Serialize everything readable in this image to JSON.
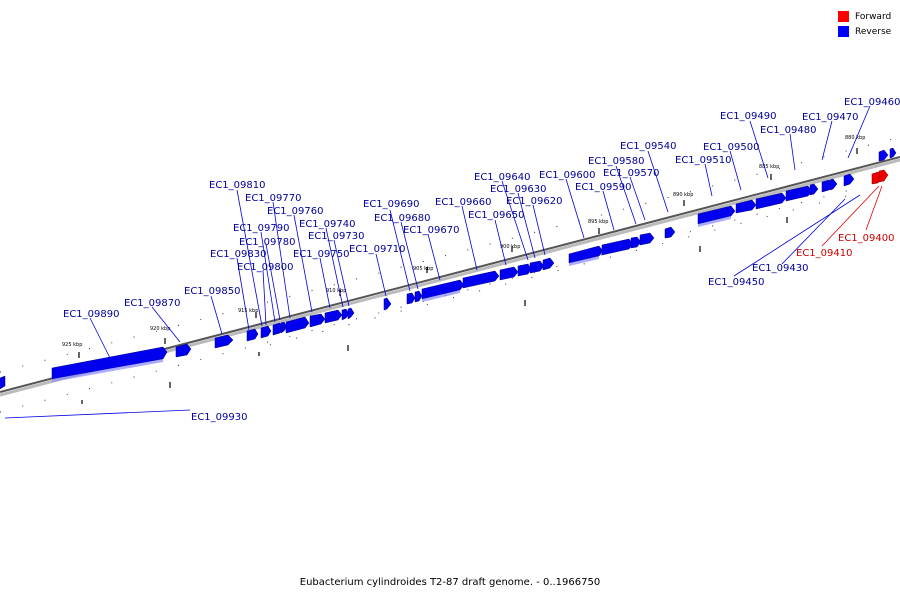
{
  "caption": "Eubacterium cylindroides T2-87 draft genome. - 0..1966750",
  "legend": {
    "forward_label": "Forward",
    "reverse_label": "Reverse",
    "forward_color": "#ff0000",
    "reverse_color": "#0000ff"
  },
  "axis_ticks": [
    "925 kbp",
    "920 kbp",
    "915 kbp",
    "910 kbp",
    "905 kbp",
    "900 kbp",
    "895 kbp",
    "890 kbp",
    "885 kbp",
    "880 kbp"
  ],
  "gene_labels_reverse": [
    "EC1_09460",
    "EC1_09470",
    "EC1_09480",
    "EC1_09490",
    "EC1_09500",
    "EC1_09510",
    "EC1_09540",
    "EC1_09570",
    "EC1_09580",
    "EC1_09590",
    "EC1_09600",
    "EC1_09620",
    "EC1_09630",
    "EC1_09640",
    "EC1_09650",
    "EC1_09660",
    "EC1_09670",
    "EC1_09680",
    "EC1_09690",
    "EC1_09710",
    "EC1_09730",
    "EC1_09740",
    "EC1_09750",
    "EC1_09760",
    "EC1_09770",
    "EC1_09780",
    "EC1_09790",
    "EC1_09800",
    "EC1_09810",
    "EC1_09830",
    "EC1_09850",
    "EC1_09870",
    "EC1_09890",
    "EC1_09930",
    "EC1_09430",
    "EC1_09450"
  ],
  "gene_labels_forward": [
    "EC1_09400",
    "EC1_09410"
  ]
}
